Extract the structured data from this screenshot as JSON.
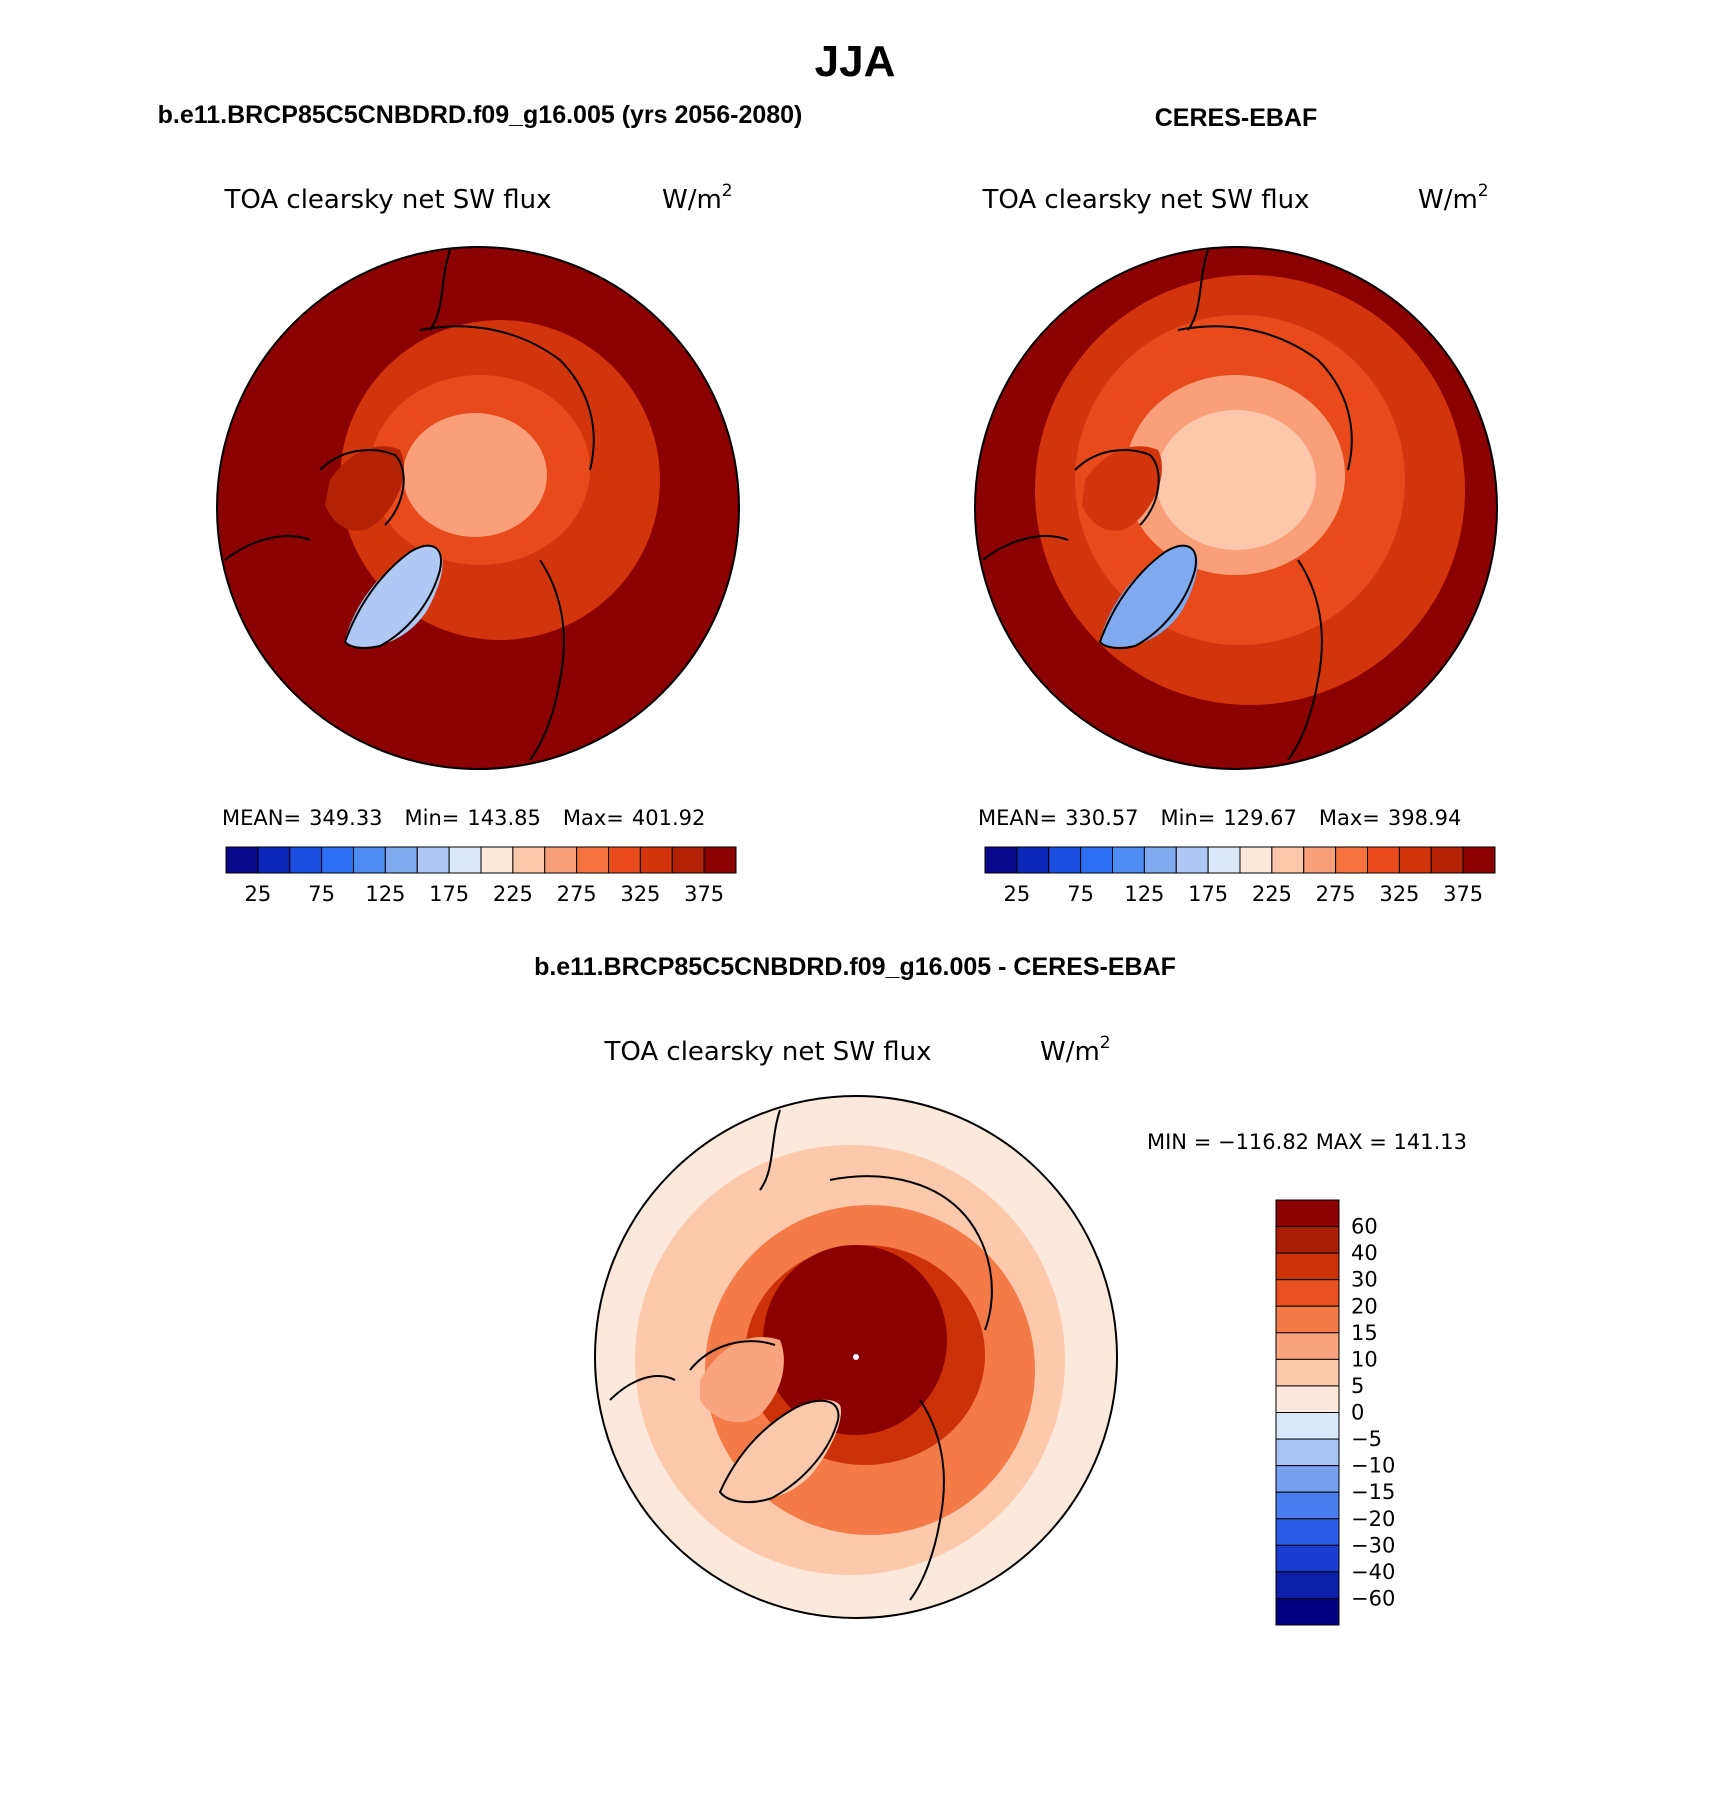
{
  "figure": {
    "season_title": "JJA",
    "panels": [
      {
        "id": "model",
        "case_title": "b.e11.BRCP85C5CNBDRD.f09_g16.005 (yrs 2056-2080)",
        "variable": "TOA clearsky net SW flux",
        "units": "W/m",
        "units_sup": "2",
        "stats": {
          "mean_label": "MEAN=",
          "mean": "349.33",
          "min_label": "Min=",
          "min": "143.85",
          "max_label": "Max=",
          "max": "401.92"
        },
        "field": {
          "pole": 265,
          "ring1": 310,
          "ring2": 345,
          "ring3": 375,
          "edge": 392,
          "greenland": 150,
          "land": 355
        }
      },
      {
        "id": "obs",
        "case_title": "CERES-EBAF",
        "variable": "TOA clearsky net SW flux",
        "units": "W/m",
        "units_sup": "2",
        "stats": {
          "mean_label": "MEAN=",
          "mean": "330.57",
          "min_label": "Min=",
          "min": "129.67",
          "max_label": "Max=",
          "max": "398.94"
        },
        "field": {
          "pole": 225,
          "ring1": 250,
          "ring2": 305,
          "ring3": 345,
          "edge": 385,
          "greenland": 140,
          "land": 335
        }
      }
    ],
    "diff_panel": {
      "title": "b.e11.BRCP85C5CNBDRD.f09_g16.005 - CERES-EBAF",
      "variable": "TOA clearsky net SW flux",
      "units": "W/m",
      "units_sup": "2",
      "minmax_text": "MIN = −116.82 MAX = 141.13",
      "field": {
        "pole": 70,
        "ring1": 35,
        "ring2": 18,
        "ring3": 8,
        "edge": 3,
        "greenland": 6,
        "land": 12
      }
    }
  },
  "chart_data": [
    {
      "type": "heatmap",
      "projection": "north polar stereographic",
      "title": "TOA clearsky net SW flux",
      "units": "W/m2",
      "stats": {
        "mean": 349.33,
        "min": 143.85,
        "max": 401.92
      },
      "colorbar": {
        "levels": [
          25,
          50,
          75,
          100,
          125,
          150,
          175,
          200,
          225,
          250,
          275,
          300,
          325,
          350,
          375
        ],
        "tick_labels": [
          "25",
          "75",
          "125",
          "175",
          "225",
          "275",
          "325",
          "375"
        ],
        "colors": [
          "#08088a",
          "#0b26b8",
          "#1a4fe0",
          "#2d6ff2",
          "#4d8cf0",
          "#7faaf0",
          "#b0c8f5",
          "#dbe8fa",
          "#fde7d8",
          "#fcc7aa",
          "#f9a07a",
          "#f4733f",
          "#e84a1c",
          "#d2340c",
          "#b32205",
          "#8b0000"
        ]
      },
      "approx_zonal_values": {
        "north_pole": 265,
        "arctic_ocean": 310,
        "high_latitudes": 345,
        "mid_latitudes": 375,
        "outer_edge": 392,
        "greenland_ice_sheet": 150
      }
    },
    {
      "type": "heatmap",
      "projection": "north polar stereographic",
      "title": "TOA clearsky net SW flux",
      "units": "W/m2",
      "stats": {
        "mean": 330.57,
        "min": 129.67,
        "max": 398.94
      },
      "colorbar": {
        "levels": [
          25,
          50,
          75,
          100,
          125,
          150,
          175,
          200,
          225,
          250,
          275,
          300,
          325,
          350,
          375
        ],
        "tick_labels": [
          "25",
          "75",
          "125",
          "175",
          "225",
          "275",
          "325",
          "375"
        ],
        "colors": [
          "#08088a",
          "#0b26b8",
          "#1a4fe0",
          "#2d6ff2",
          "#4d8cf0",
          "#7faaf0",
          "#b0c8f5",
          "#dbe8fa",
          "#fde7d8",
          "#fcc7aa",
          "#f9a07a",
          "#f4733f",
          "#e84a1c",
          "#d2340c",
          "#b32205",
          "#8b0000"
        ]
      },
      "approx_zonal_values": {
        "north_pole": 225,
        "arctic_ocean": 250,
        "high_latitudes": 305,
        "mid_latitudes": 345,
        "outer_edge": 385,
        "greenland_ice_sheet": 140
      }
    },
    {
      "type": "heatmap",
      "projection": "north polar stereographic",
      "title": "TOA clearsky net SW flux",
      "units": "W/m2",
      "stats": {
        "min": -116.82,
        "max": 141.13
      },
      "colorbar": {
        "levels": [
          -60,
          -40,
          -30,
          -20,
          -15,
          -10,
          -5,
          0,
          5,
          10,
          15,
          20,
          30,
          40,
          60
        ],
        "tick_labels": [
          "60",
          "40",
          "30",
          "20",
          "15",
          "10",
          "5",
          "0",
          "−5",
          "−10",
          "−15",
          "−20",
          "−30",
          "−40",
          "−60"
        ],
        "colors": [
          "#000080",
          "#0c1fa8",
          "#1a3dd0",
          "#2b5ce8",
          "#4a7ef0",
          "#76a0f2",
          "#a8c4f6",
          "#d9e8fb",
          "#fde9dc",
          "#fcc9ad",
          "#f9a47e",
          "#f47a48",
          "#e8501f",
          "#cc3208",
          "#a81d03",
          "#8b0000"
        ]
      },
      "approx_zonal_values": {
        "north_pole": 70,
        "arctic_ocean": 35,
        "high_latitudes": 18,
        "mid_latitudes": 8,
        "outer_edge": 3,
        "greenland_ice_sheet": 6
      }
    }
  ]
}
